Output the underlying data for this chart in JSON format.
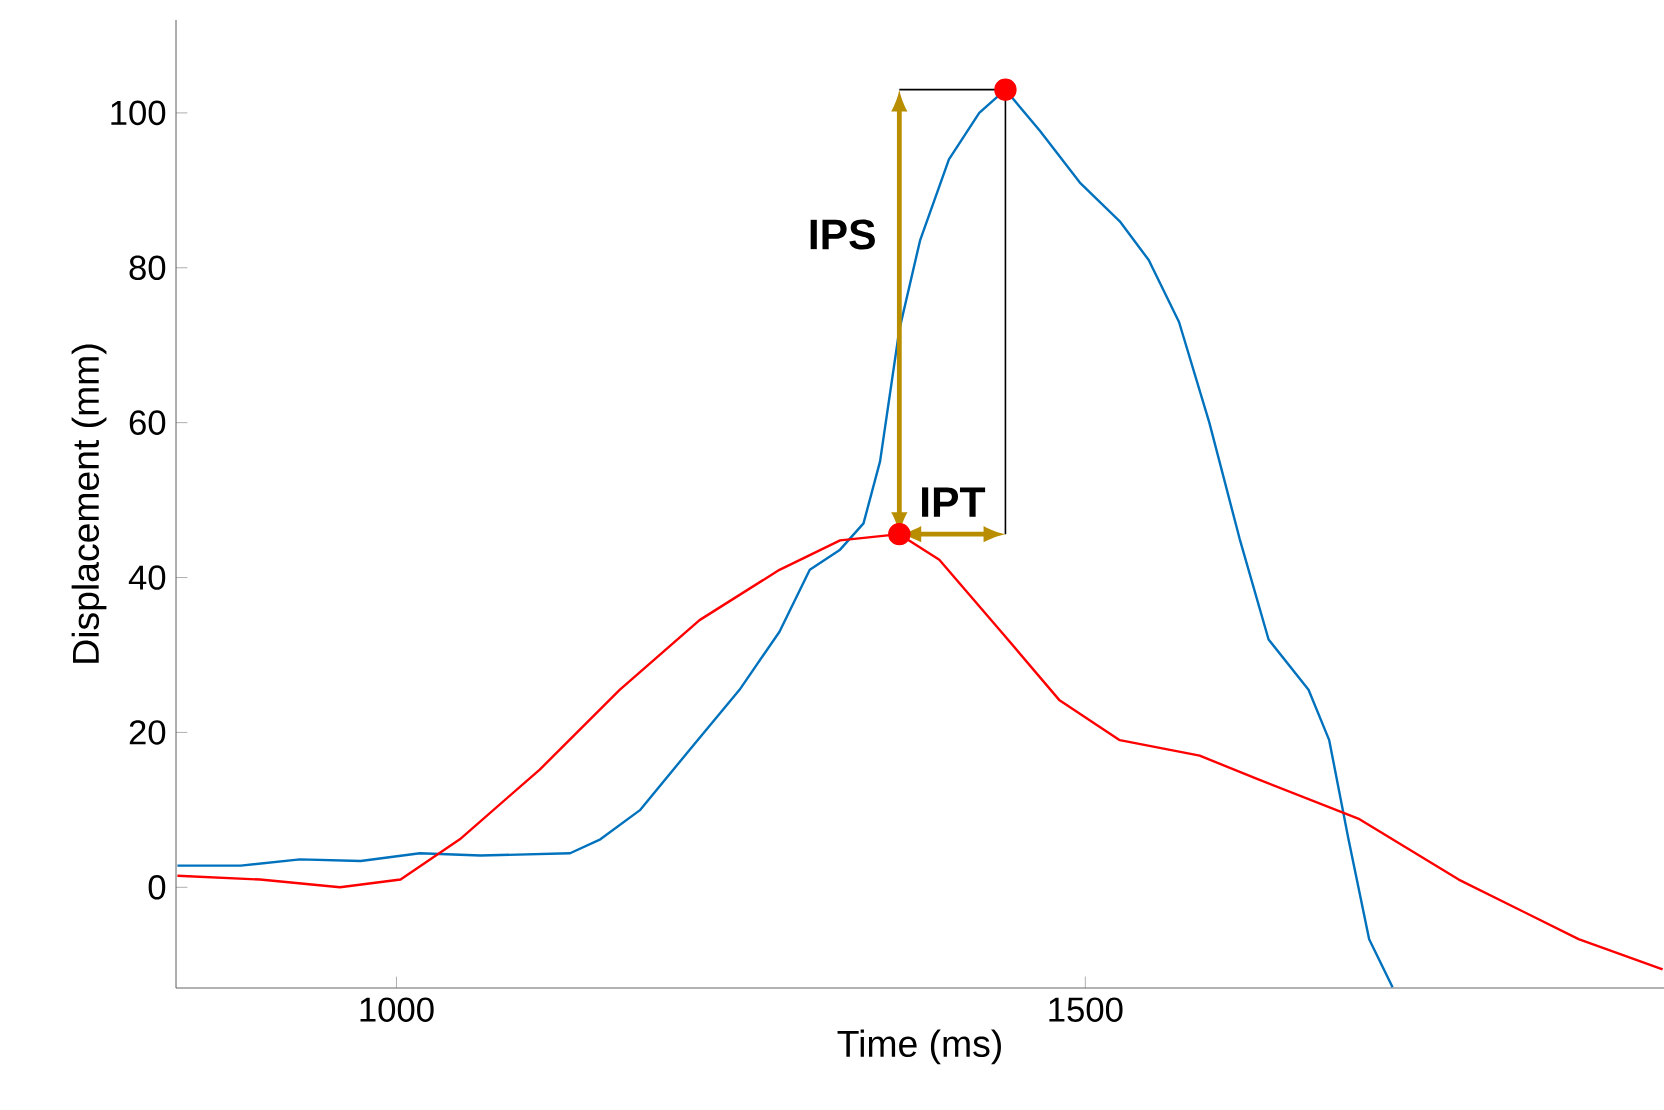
{
  "chart_data": {
    "type": "line",
    "xlabel": "Time (ms)",
    "ylabel": "Displacement (mm)",
    "xlim": [
      840,
      1920
    ],
    "ylim": [
      -13,
      112
    ],
    "xticks": [
      1000,
      1500
    ],
    "yticks": [
      0,
      20,
      40,
      60,
      80,
      100
    ],
    "grid": false,
    "line_style": "solid",
    "series": [
      {
        "color": "#0072bd",
        "x": [
          841,
          887,
          930,
          974,
          1017,
          1061,
          1126,
          1148,
          1177,
          1213,
          1249,
          1278,
          1300,
          1322,
          1339,
          1351,
          1365,
          1380,
          1401,
          1423,
          1442,
          1467,
          1496,
          1525,
          1546,
          1568,
          1590,
          1612,
          1633,
          1662,
          1677,
          1691,
          1706,
          1723
        ],
        "values": [
          2.8,
          2.8,
          3.6,
          3.4,
          4.4,
          4.1,
          4.4,
          6.2,
          10,
          17.8,
          25.5,
          33,
          41,
          43.6,
          47,
          55,
          72,
          83.5,
          94,
          100,
          103,
          97.7,
          91,
          86,
          81,
          73,
          60,
          45,
          32,
          25.5,
          19,
          6.2,
          -6.7,
          -12.9
        ]
      },
      {
        "color": "#ff0000",
        "x": [
          841,
          901,
          959,
          1003,
          1046,
          1104,
          1162,
          1220,
          1278,
          1322,
          1365,
          1394,
          1438,
          1481,
          1525,
          1583,
          1626,
          1699,
          1771,
          1858,
          1919
        ],
        "values": [
          1.5,
          1,
          0,
          1,
          6.2,
          15.2,
          25.5,
          34.5,
          41,
          44.8,
          45.6,
          42.3,
          33.2,
          24.2,
          19,
          17,
          13.9,
          8.8,
          1,
          -6.7,
          -10.6
        ]
      },
      {
        "type": "scatter",
        "color": "#ff0000",
        "x": [
          1365,
          1442
        ],
        "values": [
          45.6,
          103
        ]
      }
    ],
    "annotations": [
      "IPS",
      "IPT"
    ]
  }
}
